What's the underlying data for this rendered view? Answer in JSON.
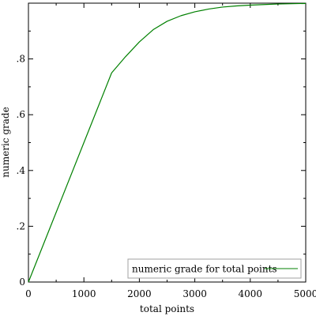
{
  "chart_data": {
    "type": "line",
    "title": "",
    "xlabel": "total points",
    "ylabel": "numeric grade",
    "xlim": [
      0,
      5000
    ],
    "ylim": [
      0,
      1
    ],
    "grid": false,
    "legend_placement": "bottom-right",
    "x_ticks": [
      {
        "value": 0,
        "label": "0"
      },
      {
        "value": 1000,
        "label": "1000"
      },
      {
        "value": 2000,
        "label": "2000"
      },
      {
        "value": 3000,
        "label": "3000"
      },
      {
        "value": 4000,
        "label": "4000"
      },
      {
        "value": 5000,
        "label": "5000"
      }
    ],
    "x_minor_ticks": [
      500,
      1500,
      2500,
      3500,
      4500
    ],
    "y_ticks": [
      {
        "value": 0,
        "label": "0"
      },
      {
        "value": 0.2,
        "label": ".2"
      },
      {
        "value": 0.4,
        "label": ".4"
      },
      {
        "value": 0.6,
        "label": ".6"
      },
      {
        "value": 0.8,
        "label": ".8"
      }
    ],
    "y_minor_ticks": [
      0.1,
      0.3,
      0.5,
      0.7,
      0.9
    ],
    "series": [
      {
        "name": "numeric grade for total points",
        "color": "#008000",
        "x": [
          0,
          500,
          1000,
          1500,
          1750,
          2000,
          2250,
          2500,
          2750,
          3000,
          3250,
          3500,
          3750,
          4000,
          4250,
          4500,
          4750,
          5000
        ],
        "y": [
          0,
          0.25,
          0.5,
          0.75,
          0.808,
          0.861,
          0.905,
          0.935,
          0.955,
          0.969,
          0.979,
          0.986,
          0.99,
          0.993,
          0.995,
          0.997,
          0.998,
          0.999
        ]
      }
    ]
  }
}
